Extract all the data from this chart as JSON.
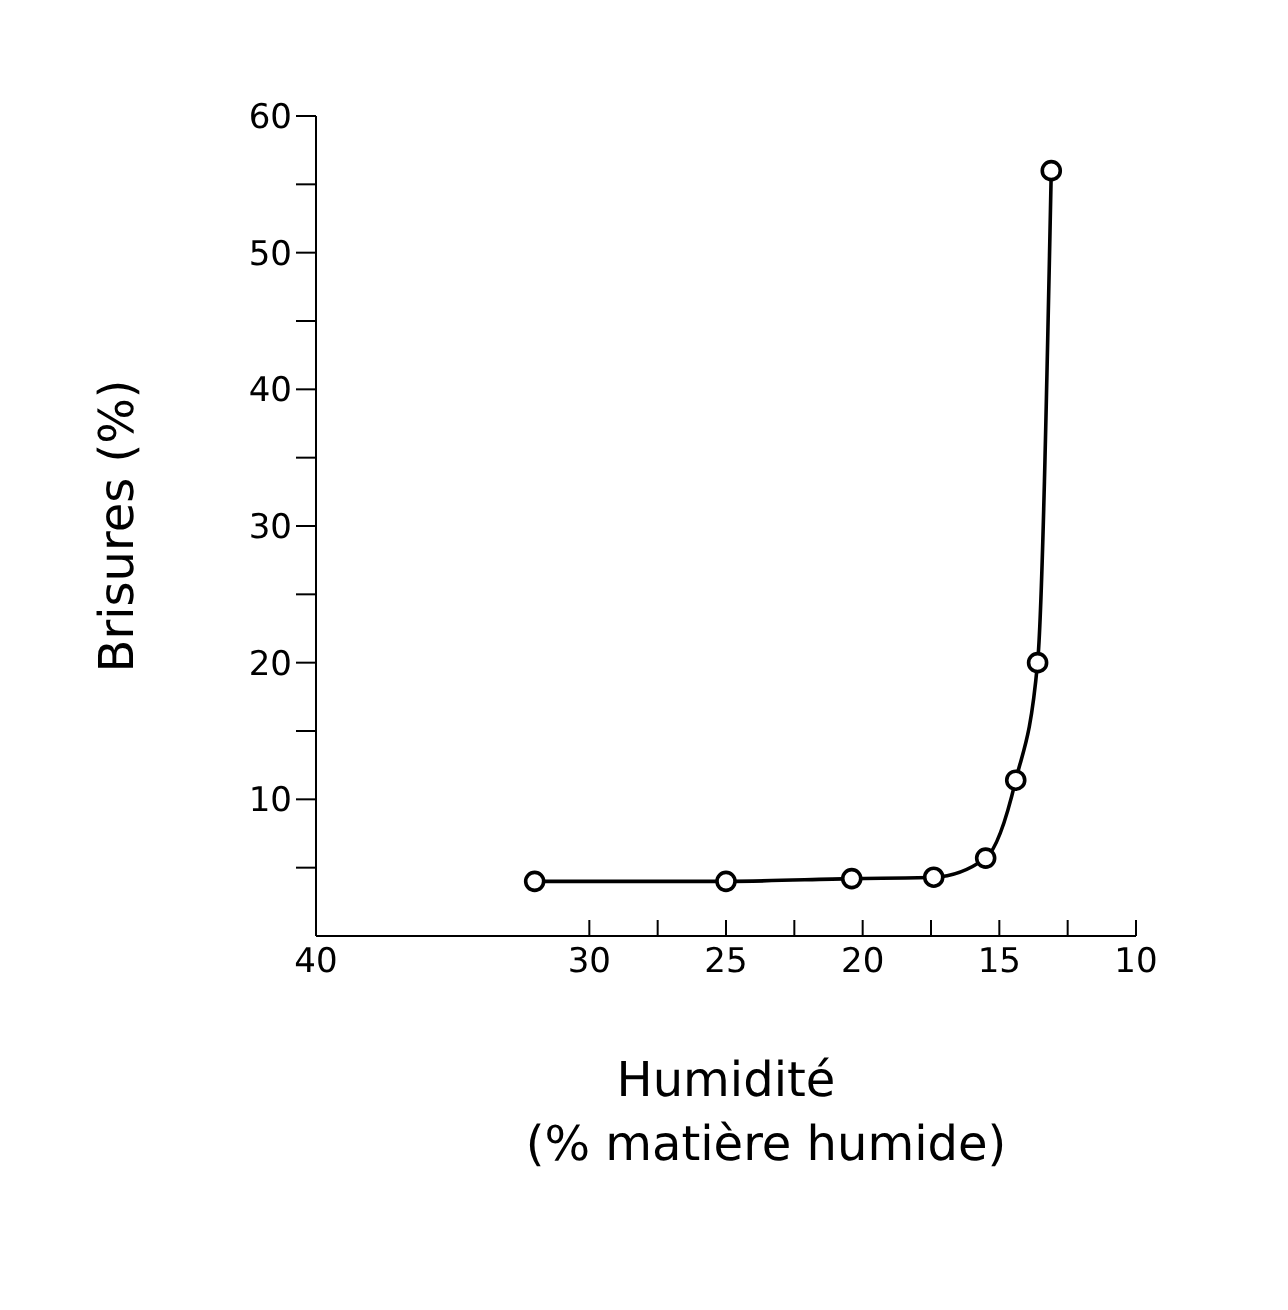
{
  "chart_data": {
    "type": "line",
    "xlabel": "Humidité\n(% matière humide)",
    "ylabel": "Brisures (%)",
    "x": [
      32,
      25,
      20.4,
      17.4,
      15.5,
      14.4,
      13.6,
      13.1
    ],
    "series": [
      {
        "color": "#000000",
        "values": [
          4,
          4,
          4.2,
          4.3,
          5.7,
          11.4,
          20,
          56
        ]
      }
    ],
    "xlim": [
      40,
      10
    ],
    "xticks": [
      40,
      30,
      {
        "value": 27.5,
        "label": null
      },
      25,
      {
        "value": 22.5,
        "label": null
      },
      20,
      {
        "value": 17.5,
        "label": null
      },
      15,
      {
        "value": 12.5,
        "label": null
      },
      10
    ],
    "ylim": [
      0,
      60
    ],
    "yticks": [
      {
        "value": 5,
        "label": null
      },
      10,
      {
        "value": 15,
        "label": null
      },
      20,
      {
        "value": 25,
        "label": null
      },
      30,
      {
        "value": 35,
        "label": null
      },
      40,
      {
        "value": 45,
        "label": null
      },
      50,
      {
        "value": 55,
        "label": null
      },
      60
    ],
    "grid": false,
    "marker": "circle",
    "line_style": "solid"
  }
}
